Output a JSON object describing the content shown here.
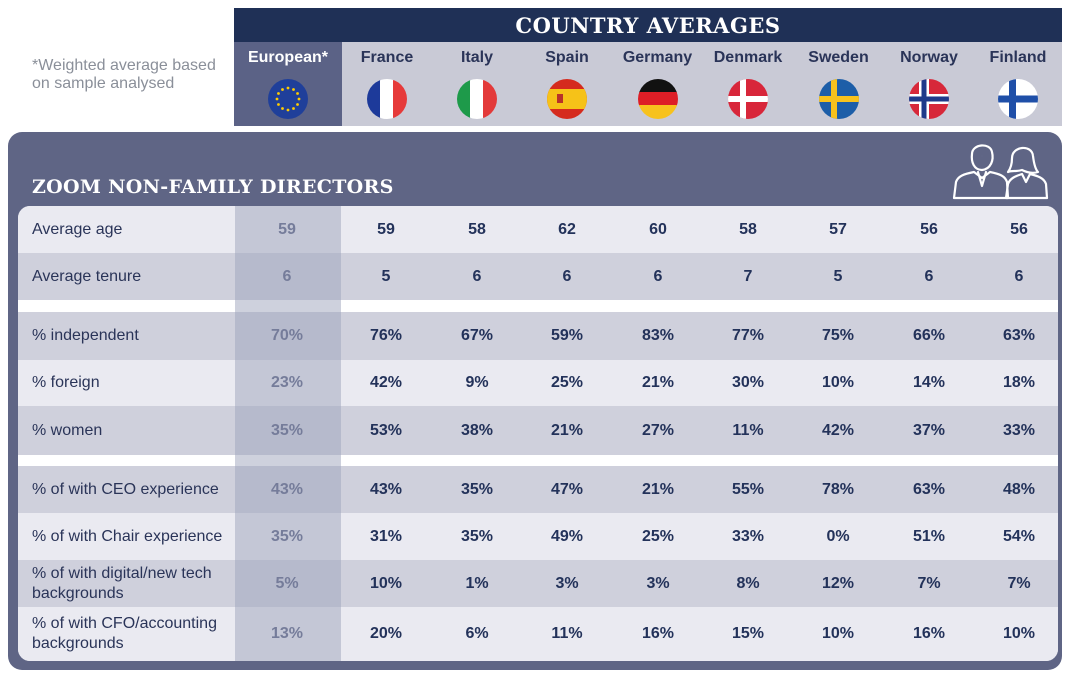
{
  "note": "*Weighted average based on sample analysed",
  "header": {
    "title": "COUNTRY AVERAGES",
    "columns": [
      {
        "name": "European*",
        "flag": "eu-flag-icon"
      },
      {
        "name": "France",
        "flag": "france-flag-icon"
      },
      {
        "name": "Italy",
        "flag": "italy-flag-icon"
      },
      {
        "name": "Spain",
        "flag": "spain-flag-icon"
      },
      {
        "name": "Germany",
        "flag": "germany-flag-icon"
      },
      {
        "name": "Denmark",
        "flag": "denmark-flag-icon"
      },
      {
        "name": "Sweden",
        "flag": "sweden-flag-icon"
      },
      {
        "name": "Norway",
        "flag": "norway-flag-icon"
      },
      {
        "name": "Finland",
        "flag": "finland-flag-icon"
      }
    ]
  },
  "panel": {
    "title": "ZOOM NON-FAMILY DIRECTORS",
    "icon": "directors-people-icon"
  },
  "colors": {
    "navy": "#1f3056",
    "panel": "#5f6585",
    "european_header": "#5b6286",
    "row_light": "#eaeaf1",
    "row_dark": "#cfd0dc"
  },
  "chart_data": {
    "type": "table",
    "title": "COUNTRY AVERAGES",
    "subtitle": "ZOOM NON-FAMILY DIRECTORS",
    "columns": [
      "European*",
      "France",
      "Italy",
      "Spain",
      "Germany",
      "Denmark",
      "Sweden",
      "Norway",
      "Finland"
    ],
    "rows": [
      {
        "label": "Average age",
        "values": [
          "59",
          "59",
          "58",
          "62",
          "60",
          "58",
          "57",
          "56",
          "56"
        ]
      },
      {
        "label": "Average tenure",
        "values": [
          "6",
          "5",
          "6",
          "6",
          "6",
          "7",
          "5",
          "6",
          "6"
        ]
      },
      {
        "label": "% independent",
        "values": [
          "70%",
          "76%",
          "67%",
          "59%",
          "83%",
          "77%",
          "75%",
          "66%",
          "63%"
        ]
      },
      {
        "label": "% foreign",
        "values": [
          "23%",
          "42%",
          "9%",
          "25%",
          "21%",
          "30%",
          "10%",
          "14%",
          "18%"
        ]
      },
      {
        "label": "% women",
        "values": [
          "35%",
          "53%",
          "38%",
          "21%",
          "27%",
          "11%",
          "42%",
          "37%",
          "33%"
        ]
      },
      {
        "label": "% of with CEO experience",
        "values": [
          "43%",
          "43%",
          "35%",
          "47%",
          "21%",
          "55%",
          "78%",
          "63%",
          "48%"
        ]
      },
      {
        "label": "% of with Chair experience",
        "values": [
          "35%",
          "31%",
          "35%",
          "49%",
          "25%",
          "33%",
          "0%",
          "51%",
          "54%"
        ]
      },
      {
        "label": "% of with digital/new tech backgrounds",
        "values": [
          "5%",
          "10%",
          "1%",
          "3%",
          "3%",
          "8%",
          "12%",
          "7%",
          "7%"
        ]
      },
      {
        "label": "% of with CFO/accounting backgrounds",
        "values": [
          "13%",
          "20%",
          "6%",
          "11%",
          "16%",
          "15%",
          "10%",
          "16%",
          "10%"
        ]
      }
    ]
  }
}
